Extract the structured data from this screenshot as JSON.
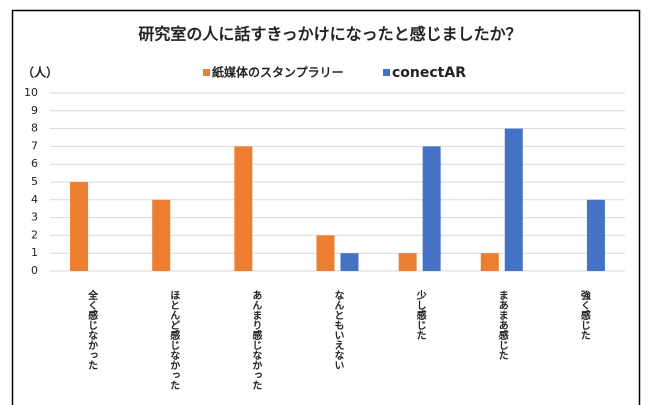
{
  "chart_data": {
    "type": "bar",
    "title": "研究室の人に話すきっかけになったと感じましたか？",
    "y_unit_label": "（人）",
    "categories": [
      "全く感じなかった",
      "ほとんど感じなかった",
      "あんまり感じなかった",
      "なんともいえない",
      "少し感じた",
      "まあまあ感じた",
      "強く感じた"
    ],
    "series": [
      {
        "name": "紙媒体のスタンプラリー",
        "color": "#ed7d31",
        "values": [
          5,
          4,
          7,
          2,
          1,
          1,
          0
        ]
      },
      {
        "name": "conectAR",
        "color": "#4472c4",
        "values": [
          0,
          0,
          0,
          1,
          7,
          8,
          4
        ]
      }
    ],
    "ylim": [
      0,
      10
    ],
    "yticks": [
      0,
      1,
      2,
      3,
      4,
      5,
      6,
      7,
      8,
      9,
      10
    ],
    "grid": true,
    "legend": "top"
  }
}
